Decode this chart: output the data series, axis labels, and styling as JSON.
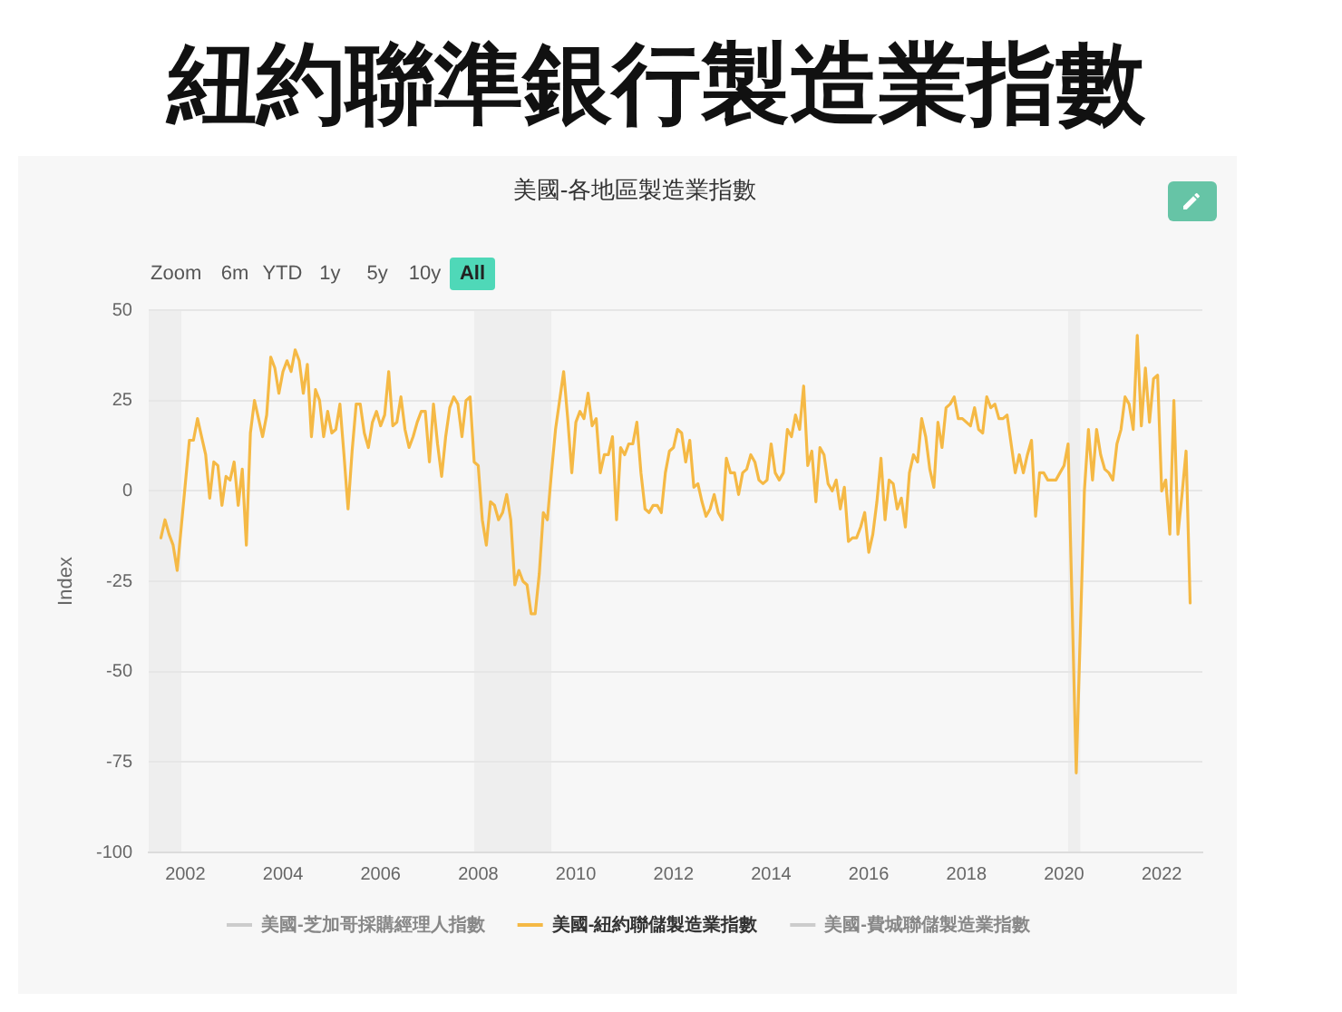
{
  "chart_data": {
    "type": "line",
    "title": "紐約聯準銀行製造業指數",
    "subtitle": "美國-各地區製造業指數",
    "ylabel": "Index",
    "annotations": [
      "Zoom",
      "6m",
      "YTD",
      "1y",
      "5y",
      "10y",
      "All"
    ],
    "x": [
      "2001-07",
      "2001-08",
      "2001-09",
      "2001-10",
      "2001-11",
      "2002-02",
      "2002-03",
      "2002-04",
      "2002-05",
      "2002-06",
      "2002-07",
      "2002-08",
      "2002-09",
      "2002-10",
      "2002-11",
      "2002-12",
      "2003-01",
      "2003-02",
      "2003-03",
      "2003-04",
      "2003-05",
      "2003-06",
      "2003-07",
      "2003-08",
      "2003-09",
      "2003-10",
      "2003-11",
      "2003-12",
      "2004-01",
      "2004-02",
      "2004-03",
      "2004-04",
      "2004-05",
      "2004-06",
      "2004-07",
      "2004-08",
      "2004-09",
      "2004-10",
      "2004-11",
      "2004-12",
      "2005-01",
      "2005-02",
      "2005-03",
      "2005-04",
      "2005-05",
      "2005-06",
      "2005-07",
      "2005-08",
      "2005-09",
      "2005-10",
      "2005-11",
      "2005-12",
      "2006-01",
      "2006-02",
      "2006-03",
      "2006-04",
      "2006-05",
      "2006-06",
      "2006-07",
      "2006-08",
      "2006-09",
      "2006-10",
      "2006-11",
      "2006-12",
      "2007-01",
      "2007-02",
      "2007-03",
      "2007-04",
      "2007-05",
      "2007-06",
      "2007-07",
      "2007-08",
      "2007-09",
      "2007-10",
      "2007-11",
      "2007-12",
      "2008-01",
      "2008-02",
      "2008-03",
      "2008-04",
      "2008-05",
      "2008-06",
      "2008-07",
      "2008-08",
      "2008-09",
      "2008-10",
      "2008-11",
      "2008-12",
      "2009-01",
      "2009-02",
      "2009-03",
      "2009-04",
      "2009-05",
      "2009-06",
      "2009-07",
      "2009-08",
      "2009-09",
      "2009-10",
      "2009-11",
      "2009-12",
      "2010-01",
      "2010-02",
      "2010-03",
      "2010-04",
      "2010-05",
      "2010-06",
      "2010-07",
      "2010-08",
      "2010-09",
      "2010-10",
      "2010-11",
      "2010-12",
      "2011-01",
      "2011-02",
      "2011-03",
      "2011-04",
      "2011-05",
      "2011-06",
      "2011-07",
      "2011-08",
      "2011-09",
      "2011-10",
      "2011-11",
      "2011-12",
      "2012-01",
      "2012-02",
      "2012-03",
      "2012-04",
      "2012-05",
      "2012-06",
      "2012-07",
      "2012-08",
      "2012-09",
      "2012-10",
      "2012-11",
      "2012-12",
      "2013-01",
      "2013-02",
      "2013-03",
      "2013-04",
      "2013-05",
      "2013-06",
      "2013-07",
      "2013-08",
      "2013-09",
      "2013-10",
      "2013-11",
      "2013-12",
      "2014-01",
      "2014-02",
      "2014-03",
      "2014-04",
      "2014-05",
      "2014-06",
      "2014-07",
      "2014-08",
      "2014-09",
      "2014-10",
      "2014-11",
      "2014-12",
      "2015-01",
      "2015-02",
      "2015-03",
      "2015-04",
      "2015-05",
      "2015-06",
      "2015-07",
      "2015-08",
      "2015-09",
      "2015-10",
      "2015-11",
      "2015-12",
      "2016-01",
      "2016-02",
      "2016-03",
      "2016-04",
      "2016-05",
      "2016-06",
      "2016-07",
      "2016-08",
      "2016-09",
      "2016-10",
      "2016-11",
      "2016-12",
      "2017-01",
      "2017-02",
      "2017-03",
      "2017-04",
      "2017-05",
      "2017-06",
      "2017-07",
      "2017-08",
      "2017-09",
      "2017-10",
      "2017-11",
      "2017-12",
      "2018-01",
      "2018-02",
      "2018-03",
      "2018-04",
      "2018-05",
      "2018-06",
      "2018-07",
      "2018-08",
      "2018-09",
      "2018-10",
      "2018-11",
      "2018-12",
      "2019-01",
      "2019-02",
      "2019-03",
      "2019-04",
      "2019-05",
      "2019-06",
      "2019-07",
      "2019-08",
      "2019-09",
      "2019-10",
      "2019-11",
      "2019-12",
      "2020-01",
      "2020-02",
      "2020-04",
      "2020-06",
      "2020-07",
      "2020-08",
      "2020-09",
      "2020-10",
      "2020-11",
      "2020-12",
      "2021-01",
      "2021-02",
      "2021-03",
      "2021-04",
      "2021-05",
      "2021-06",
      "2021-07",
      "2021-08",
      "2021-09",
      "2021-10",
      "2021-11",
      "2021-12",
      "2022-01",
      "2022-02",
      "2022-03",
      "2022-04",
      "2022-05",
      "2022-06",
      "2022-07",
      "2022-08"
    ],
    "series": [
      {
        "name": "美國-芝加哥採購經理人指數",
        "color": "#cccccc",
        "values": [
          null,
          null,
          null,
          null,
          null,
          null,
          null,
          null,
          null,
          null,
          null,
          null,
          null,
          null,
          null,
          null,
          null,
          null,
          null,
          null,
          null,
          null,
          null,
          null,
          null,
          null,
          null,
          null,
          null,
          null,
          null,
          null,
          null,
          null,
          null,
          null,
          null,
          null,
          null,
          null,
          null,
          null,
          null,
          null,
          null,
          null,
          null,
          null,
          null,
          null,
          null,
          null,
          null,
          null,
          null,
          null,
          null,
          null,
          null,
          null,
          null,
          null,
          null,
          null,
          null,
          null,
          null,
          null,
          null,
          null,
          null,
          null,
          null,
          null,
          null,
          null,
          null,
          null,
          null,
          null,
          null,
          null,
          null,
          null,
          null,
          null,
          null,
          null,
          null,
          null,
          null,
          null,
          null,
          null,
          null,
          null,
          null,
          null,
          null,
          null,
          null,
          null,
          null,
          null,
          null,
          null,
          null,
          null,
          null,
          null,
          null,
          null,
          null,
          null,
          null,
          null,
          null,
          null,
          null,
          null,
          null,
          null,
          null,
          null,
          null,
          null,
          null,
          null,
          null,
          null,
          null,
          null,
          null,
          null,
          null,
          null,
          null,
          null,
          null,
          null,
          null,
          null,
          null,
          null,
          null,
          null,
          null,
          null,
          null,
          null,
          null,
          null,
          null,
          null,
          null,
          null,
          null,
          null,
          null,
          null,
          null,
          null,
          null,
          null,
          null,
          null,
          null,
          null,
          null,
          null,
          null,
          null,
          null,
          null,
          null,
          null,
          null,
          null,
          null,
          null,
          null,
          null,
          null,
          null,
          null,
          null,
          null,
          null,
          null,
          null,
          null,
          null,
          null,
          null,
          null,
          null,
          null,
          null,
          null,
          null,
          null,
          null,
          null,
          null,
          null,
          null,
          null,
          null,
          null,
          null,
          null,
          null,
          null,
          null,
          null,
          null,
          null,
          null,
          null,
          null,
          null,
          null,
          null,
          null,
          null,
          null,
          null,
          null,
          null,
          null,
          null,
          null,
          null,
          null,
          null,
          null,
          null,
          null,
          null,
          null,
          null,
          null,
          null,
          null,
          null,
          null,
          null,
          null,
          null,
          null
        ]
      },
      {
        "name": "美國-紐約聯儲製造業指數",
        "color": "#f5b945",
        "values": [
          -13,
          -8,
          -12,
          -15,
          -22,
          14,
          14,
          20,
          15,
          10,
          -2,
          8,
          7,
          -4,
          4,
          3,
          8,
          -4,
          6,
          -15,
          16,
          25,
          20,
          15,
          21,
          37,
          34,
          27,
          33,
          36,
          33,
          39,
          36,
          27,
          35,
          15,
          28,
          25,
          15,
          22,
          16,
          17,
          24,
          10,
          -5,
          11,
          24,
          24,
          16,
          12,
          19,
          22,
          18,
          21,
          33,
          18,
          19,
          26,
          17,
          12,
          15,
          19,
          22,
          22,
          8,
          24,
          13,
          4,
          15,
          23,
          26,
          24,
          15,
          25,
          26,
          8,
          7,
          -8,
          -15,
          -3,
          -4,
          -8,
          -6,
          -1,
          -8,
          -26,
          -22,
          -25,
          -26,
          -34,
          -34,
          -23,
          -6,
          -8,
          5,
          17,
          25,
          33,
          20,
          5,
          19,
          22,
          20,
          27,
          18,
          20,
          5,
          10,
          10,
          15,
          -8,
          12,
          10,
          13,
          13,
          19,
          5,
          -5,
          -6,
          -4,
          -4,
          -6,
          5,
          11,
          12,
          17,
          16,
          8,
          14,
          1,
          2,
          -3,
          -7,
          -5,
          -1,
          -6,
          -8,
          9,
          5,
          5,
          -1,
          5,
          6,
          10,
          8,
          3,
          2,
          3,
          13,
          5,
          3,
          5,
          17,
          15,
          21,
          17,
          29,
          7,
          11,
          -3,
          12,
          10,
          2,
          0,
          3,
          -5,
          1,
          -14,
          -13,
          -13,
          -10,
          -6,
          -17,
          -12,
          -3,
          9,
          -8,
          3,
          2,
          -5,
          -2,
          -10,
          5,
          10,
          8,
          20,
          15,
          6,
          1,
          19,
          12,
          23,
          24,
          26,
          20,
          20,
          19,
          18,
          23,
          17,
          16,
          26,
          23,
          24,
          20,
          20,
          21,
          13,
          5,
          10,
          5,
          10,
          14,
          -7,
          5,
          5,
          3,
          3,
          3,
          5,
          7,
          13,
          -78,
          0,
          17,
          3,
          17,
          10,
          6,
          5,
          3,
          13,
          17,
          26,
          24,
          17,
          43,
          18,
          34,
          19,
          31,
          32,
          0,
          3,
          -12,
          25,
          -12,
          -1,
          11,
          -31
        ]
      },
      {
        "name": "美國-費城聯儲製造業指數",
        "color": "#cccccc",
        "values": [
          null,
          null,
          null,
          null,
          null,
          null,
          null,
          null,
          null,
          null,
          null,
          null,
          null,
          null,
          null,
          null,
          null,
          null,
          null,
          null,
          null,
          null,
          null,
          null,
          null,
          null,
          null,
          null,
          null,
          null,
          null,
          null,
          null,
          null,
          null,
          null,
          null,
          null,
          null,
          null,
          null,
          null,
          null,
          null,
          null,
          null,
          null,
          null,
          null,
          null,
          null,
          null,
          null,
          null,
          null,
          null,
          null,
          null,
          null,
          null,
          null,
          null,
          null,
          null,
          null,
          null,
          null,
          null,
          null,
          null,
          null,
          null,
          null,
          null,
          null,
          null,
          null,
          null,
          null,
          null,
          null,
          null,
          null,
          null,
          null,
          null,
          null,
          null,
          null,
          null,
          null,
          null,
          null,
          null,
          null,
          null,
          null,
          null,
          null,
          null,
          null,
          null,
          null,
          null,
          null,
          null,
          null,
          null,
          null,
          null,
          null,
          null,
          null,
          null,
          null,
          null,
          null,
          null,
          null,
          null,
          null,
          null,
          null,
          null,
          null,
          null,
          null,
          null,
          null,
          null,
          null,
          null,
          null,
          null,
          null,
          null,
          null,
          null,
          null,
          null,
          null,
          null,
          null,
          null,
          null,
          null,
          null,
          null,
          null,
          null,
          null,
          null,
          null,
          null,
          null,
          null,
          null,
          null,
          null,
          null,
          null,
          null,
          null,
          null,
          null,
          null,
          null,
          null,
          null,
          null,
          null,
          null,
          null,
          null,
          null,
          null,
          null,
          null,
          null,
          null,
          null,
          null,
          null,
          null,
          null,
          null,
          null,
          null,
          null,
          null,
          null,
          null,
          null,
          null,
          null,
          null,
          null,
          null,
          null,
          null,
          null,
          null,
          null,
          null,
          null,
          null,
          null,
          null,
          null,
          null,
          null,
          null,
          null,
          null,
          null,
          null,
          null,
          null,
          null,
          null,
          null,
          null,
          null,
          null,
          null,
          null,
          null,
          null,
          null,
          null,
          null,
          null,
          null,
          null,
          null,
          null,
          null,
          null,
          null,
          null,
          null,
          null,
          null,
          null,
          null,
          null,
          null,
          null,
          null,
          null
        ]
      }
    ],
    "xlim": [
      "2001-04",
      "2022-11"
    ],
    "xticks": [
      "2002",
      "2004",
      "2006",
      "2008",
      "2010",
      "2012",
      "2014",
      "2016",
      "2018",
      "2020",
      "2022"
    ],
    "ylim": [
      -100,
      50
    ],
    "yticks": [
      -100,
      -75,
      -50,
      -25,
      0,
      25,
      50
    ],
    "bands": [
      {
        "axis": "x",
        "from": "2001-04",
        "to": "2001-12",
        "color": "#eeeeee"
      },
      {
        "axis": "x",
        "from": "2007-12",
        "to": "2009-07",
        "color": "#eeeeee"
      },
      {
        "axis": "x",
        "from": "2020-02",
        "to": "2020-05",
        "color": "#eeeeee"
      }
    ],
    "grid": "y",
    "legend": "bottom",
    "marker": "none",
    "line_style": "solid"
  }
}
